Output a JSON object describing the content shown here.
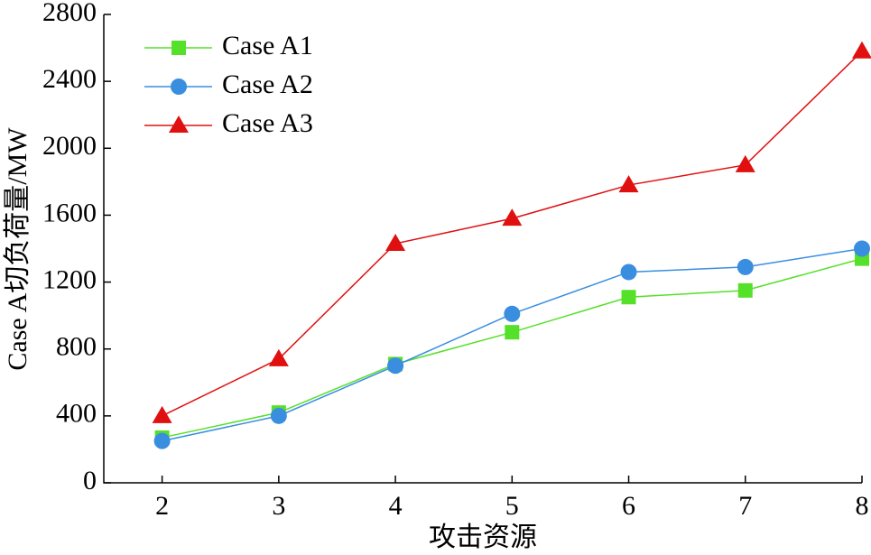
{
  "chart_data": {
    "type": "line",
    "x_label": "攻击资源",
    "y_label": "Case A切负荷量/MW",
    "x": [
      2,
      3,
      4,
      5,
      6,
      7,
      8
    ],
    "xlim": [
      1.5,
      8
    ],
    "xticks": [
      2,
      3,
      4,
      5,
      6,
      7,
      8
    ],
    "ylim": [
      0,
      2800
    ],
    "yticks": [
      0,
      400,
      800,
      1200,
      1600,
      2000,
      2400,
      2800
    ],
    "legend": "upper left",
    "grid": false,
    "series": [
      {
        "name": "Case A1",
        "color": "#55e02a",
        "marker": "square",
        "values": [
          270,
          420,
          710,
          900,
          1110,
          1150,
          1340
        ]
      },
      {
        "name": "Case A2",
        "color": "#3a8ee0",
        "marker": "circle",
        "values": [
          250,
          400,
          700,
          1010,
          1260,
          1290,
          1400
        ]
      },
      {
        "name": "Case A3",
        "color": "#e01010",
        "marker": "triangle",
        "values": [
          400,
          740,
          1430,
          1580,
          1780,
          1900,
          2580
        ]
      }
    ]
  }
}
